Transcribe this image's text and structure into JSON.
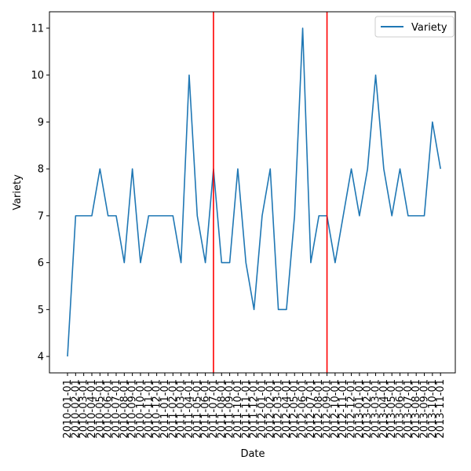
{
  "chart_data": {
    "type": "line",
    "xlabel": "Date",
    "ylabel": "Variety",
    "ylim": [
      3.65,
      11.35
    ],
    "yticks": [
      4,
      5,
      6,
      7,
      8,
      9,
      10,
      11
    ],
    "grid": false,
    "legend": {
      "placement": "top-right"
    },
    "series": [
      {
        "name": "Variety",
        "color": "#1f77b4",
        "x": [
          "2010-01-01",
          "2010-02-01",
          "2010-03-01",
          "2010-04-01",
          "2010-05-01",
          "2010-06-01",
          "2010-07-01",
          "2010-08-01",
          "2010-09-01",
          "2010-10-01",
          "2010-11-01",
          "2010-12-01",
          "2011-01-01",
          "2011-02-01",
          "2011-03-01",
          "2011-04-01",
          "2011-05-01",
          "2011-06-01",
          "2011-07-01",
          "2011-08-01",
          "2011-09-01",
          "2011-10-01",
          "2011-11-01",
          "2011-12-01",
          "2012-01-01",
          "2012-02-01",
          "2012-03-01",
          "2012-04-01",
          "2012-05-01",
          "2012-06-01",
          "2012-07-01",
          "2012-08-01",
          "2012-09-01",
          "2012-10-01",
          "2012-11-01",
          "2012-12-01",
          "2013-01-01",
          "2013-02-01",
          "2013-03-01",
          "2013-04-01",
          "2013-05-01",
          "2013-06-01",
          "2013-07-01",
          "2013-08-01",
          "2013-09-01",
          "2013-10-01",
          "2013-11-01"
        ],
        "values": [
          4,
          7,
          7,
          7,
          8,
          7,
          7,
          6,
          8,
          6,
          7,
          7,
          7,
          7,
          6,
          10,
          7,
          6,
          8,
          6,
          6,
          8,
          6,
          5,
          7,
          8,
          5,
          5,
          7,
          11,
          6,
          7,
          7,
          6,
          7,
          8,
          7,
          8,
          10,
          8,
          7,
          8,
          7,
          7,
          7,
          9,
          8
        ]
      }
    ],
    "vlines": [
      {
        "x": "2011-07-01",
        "color": "#ff0000"
      },
      {
        "x": "2012-09-01",
        "color": "#ff0000"
      }
    ],
    "xtick_labels": [
      "2010-01-01",
      "2010-02-01",
      "2010-03-01",
      "2010-04-01",
      "2010-05-01",
      "2010-06-01",
      "2010-07-01",
      "2010-08-01",
      "2010-09-01",
      "2010-10-01",
      "2010-11-01",
      "2010-12-01",
      "2011-01-01",
      "2011-02-01",
      "2011-03-01",
      "2011-04-01",
      "2011-05-01",
      "2011-06-01",
      "2011-07-01",
      "2011-08-01",
      "2011-09-01",
      "2011-10-01",
      "2011-11-01",
      "2011-12-01",
      "2012-01-01",
      "2012-02-01",
      "2012-03-01",
      "2012-04-01",
      "2012-05-01",
      "2012-06-01",
      "2012-07-01",
      "2012-08-01",
      "2012-09-01",
      "2012-10-01",
      "2012-11-01",
      "2012-12-01",
      "2013-01-01",
      "2013-02-01",
      "2013-03-01",
      "2013-04-01",
      "2013-05-01",
      "2013-06-01",
      "2013-07-01",
      "2013-08-01",
      "2013-09-01",
      "2013-10-01",
      "2013-11-01"
    ]
  }
}
